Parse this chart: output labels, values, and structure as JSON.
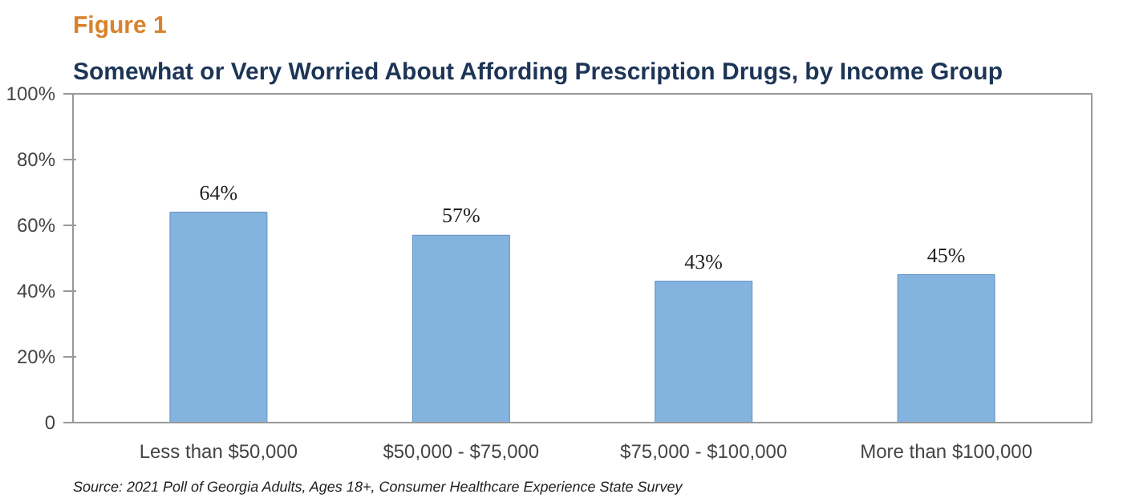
{
  "chart_data": {
    "type": "bar",
    "title": "Figure 1",
    "subtitle": "Somewhat or Very Worried About Affording Prescription Drugs, by Income Group",
    "categories": [
      "Less than $50,000",
      "$50,000 - $75,000",
      "$75,000 - $100,000",
      "More than $100,000"
    ],
    "values": [
      64,
      57,
      43,
      45
    ],
    "color": "#85b3e0",
    "value_labels": [
      "64%",
      "57%",
      "43%",
      "45%"
    ],
    "ylim": [
      0,
      100
    ],
    "yticks": [
      {
        "value": 0,
        "label": "0"
      },
      {
        "value": 20,
        "label": "20%"
      },
      {
        "value": 40,
        "label": "40%"
      },
      {
        "value": 60,
        "label": "60%"
      },
      {
        "value": 80,
        "label": "80%"
      },
      {
        "value": 100,
        "label": "100%"
      }
    ],
    "grid": false,
    "annotations": [
      "Source: 2021 Poll of Georgia Adults, Ages 18+, Consumer Healthcare Experience State Survey"
    ]
  }
}
